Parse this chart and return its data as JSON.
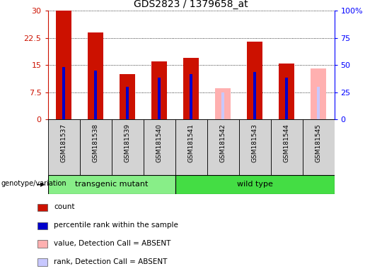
{
  "title": "GDS2823 / 1379658_at",
  "samples": [
    "GSM181537",
    "GSM181538",
    "GSM181539",
    "GSM181540",
    "GSM181541",
    "GSM181542",
    "GSM181543",
    "GSM181544",
    "GSM181545"
  ],
  "count_values": [
    30.0,
    24.0,
    12.5,
    16.0,
    17.0,
    null,
    21.5,
    15.5,
    null
  ],
  "rank_values": [
    14.5,
    13.5,
    9.0,
    11.5,
    12.5,
    null,
    13.0,
    11.5,
    null
  ],
  "absent_count": [
    null,
    null,
    null,
    null,
    null,
    8.5,
    null,
    null,
    14.0
  ],
  "absent_rank": [
    null,
    null,
    null,
    null,
    null,
    7.5,
    null,
    null,
    9.0
  ],
  "count_color": "#cc1100",
  "rank_color": "#0000cc",
  "absent_count_color": "#ffb0b0",
  "absent_rank_color": "#c8c8ff",
  "groups": [
    {
      "label": "transgenic mutant",
      "start": 0,
      "end": 3,
      "color": "#88ee88"
    },
    {
      "label": "wild type",
      "start": 4,
      "end": 8,
      "color": "#44dd44"
    }
  ],
  "yticks_left": [
    0,
    7.5,
    15,
    22.5,
    30
  ],
  "yticks_right": [
    0,
    25,
    50,
    75,
    100
  ],
  "ytick_labels_left": [
    "0",
    "7.5",
    "15",
    "22.5",
    "30"
  ],
  "ytick_labels_right": [
    "0",
    "25",
    "50",
    "75",
    "100%"
  ],
  "ylim": [
    0,
    30
  ],
  "bar_width": 0.5,
  "rank_bar_width": 0.1,
  "group_label": "genotype/variation",
  "background_color": "#d3d3d3",
  "plot_bg": "#ffffff",
  "legend_items": [
    {
      "label": "count",
      "color": "#cc1100"
    },
    {
      "label": "percentile rank within the sample",
      "color": "#0000cc"
    },
    {
      "label": "value, Detection Call = ABSENT",
      "color": "#ffb0b0"
    },
    {
      "label": "rank, Detection Call = ABSENT",
      "color": "#c8c8ff"
    }
  ]
}
